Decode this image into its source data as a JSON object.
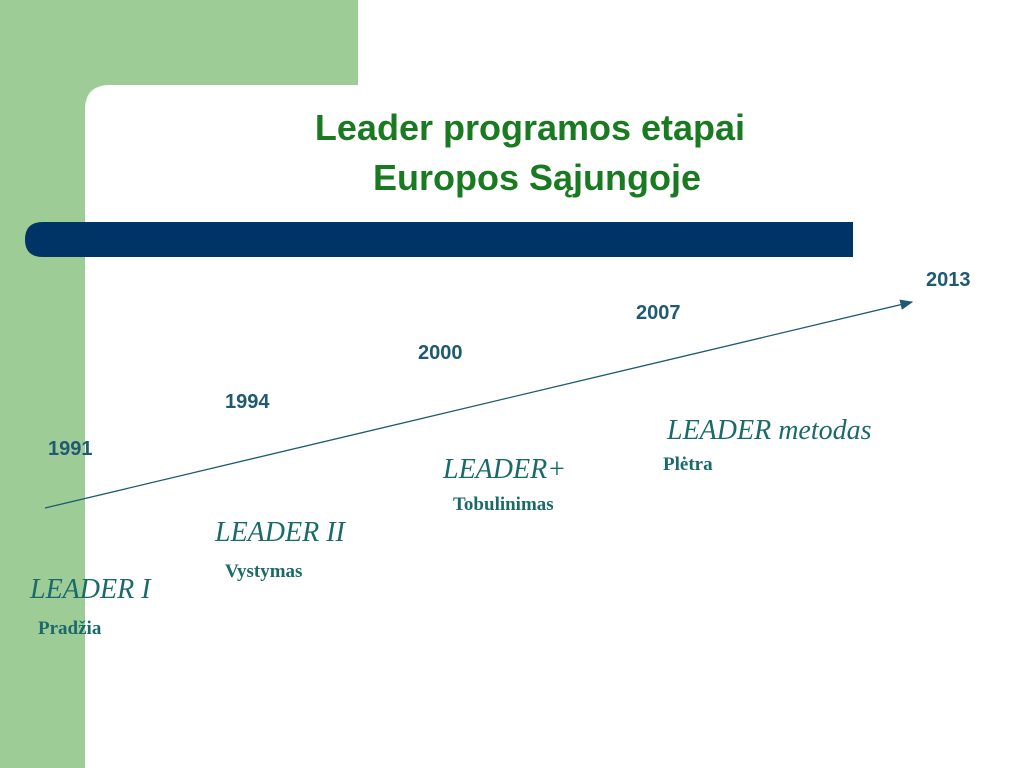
{
  "title": {
    "line1": "Leader programos etapai",
    "line2": "Europos Sąjungoje"
  },
  "years": [
    "1991",
    "1994",
    "2000",
    "2007",
    "2013"
  ],
  "stages": [
    {
      "name": "LEADER I",
      "label": "Pradžia"
    },
    {
      "name": "LEADER II",
      "label": "Vystymas"
    },
    {
      "name": "LEADER+",
      "label": "Tobulinimas"
    },
    {
      "name": "LEADER metodas",
      "label": "Plėtra"
    }
  ]
}
